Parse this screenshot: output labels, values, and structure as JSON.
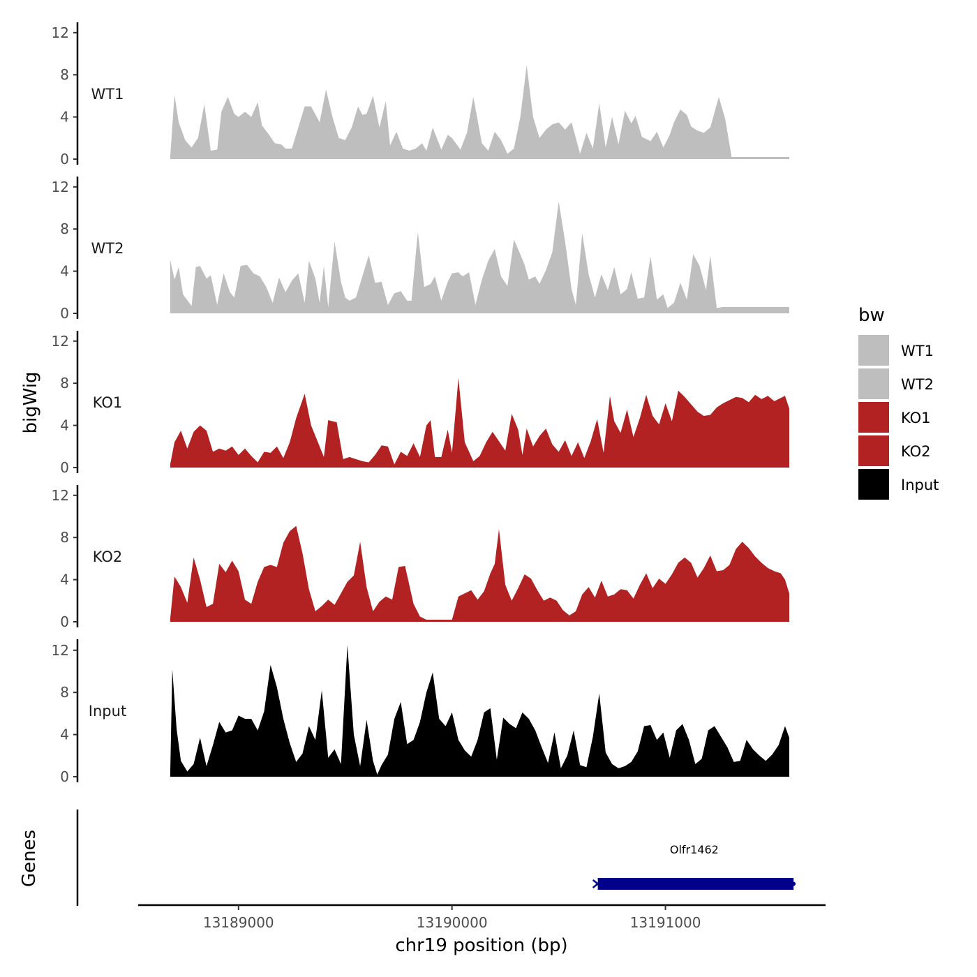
{
  "chart_data": {
    "type": "area",
    "ylabel": "bigWig",
    "genes_label": "Genes",
    "xlabel": "chr19 position (bp)",
    "x_ticks": [
      13189000,
      13190000,
      13191000
    ],
    "x_tick_labels": [
      "13189000",
      "13190000",
      "13191000"
    ],
    "xlim": [
      13188530,
      13191750
    ],
    "ylim": [
      0,
      12.6
    ],
    "y_ticks": [
      0,
      4,
      8,
      12
    ],
    "y_tick_labels": [
      "0",
      "4",
      "8",
      "12"
    ],
    "legend": {
      "title": "bw",
      "entries": [
        {
          "label": "WT1",
          "color": "#bebebe"
        },
        {
          "label": "WT2",
          "color": "#bebebe"
        },
        {
          "label": "KO1",
          "color": "#b22222"
        },
        {
          "label": "KO2",
          "color": "#b22222"
        },
        {
          "label": "Input",
          "color": "#000000"
        }
      ]
    },
    "series": [
      {
        "name": "WT1",
        "color": "#bebebe",
        "x": [
          13188680,
          13188700,
          13188720,
          13188750,
          13188780,
          13188810,
          13188840,
          13188870,
          13188900,
          13188920,
          13188950,
          13188980,
          13189000,
          13189030,
          13189060,
          13189090,
          13189110,
          13189140,
          13189170,
          13189200,
          13189220,
          13189250,
          13189280,
          13189310,
          13189340,
          13189380,
          13189410,
          13189440,
          13189470,
          13189500,
          13189530,
          13189560,
          13189580,
          13189600,
          13189630,
          13189660,
          13189690,
          13189710,
          13189740,
          13189770,
          13189800,
          13189830,
          13189860,
          13189880,
          13189910,
          13189950,
          13189980,
          13190000,
          13190040,
          13190070,
          13190100,
          13190140,
          13190170,
          13190200,
          13190230,
          13190260,
          13190290,
          13190320,
          13190350,
          13190380,
          13190410,
          13190440,
          13190470,
          13190500,
          13190530,
          13190560,
          13190600,
          13190630,
          13190660,
          13190690,
          13190720,
          13190750,
          13190780,
          13190810,
          13190840,
          13190860,
          13190890,
          13190930,
          13190960,
          13190990,
          13191020,
          13191040,
          13191070,
          13191100,
          13191120,
          13191150,
          13191180,
          13191210,
          13191250,
          13191280,
          13191310,
          13191340,
          13191370,
          13191400,
          13191430,
          13191460,
          13191490,
          13191520,
          13191540,
          13191570,
          13191580
        ],
        "y": [
          0.2,
          6.1,
          3.5,
          1.8,
          1.1,
          2.0,
          5.2,
          0.8,
          0.9,
          4.5,
          5.9,
          4.3,
          4.0,
          4.5,
          4.0,
          5.4,
          3.2,
          2.4,
          1.5,
          1.4,
          1.0,
          1.0,
          3.0,
          5.0,
          5.0,
          3.5,
          6.6,
          4.0,
          2.0,
          1.8,
          3.0,
          5.0,
          4.2,
          4.3,
          6.0,
          3.0,
          5.5,
          1.3,
          2.6,
          1.0,
          0.8,
          1.0,
          1.5,
          0.8,
          3.0,
          0.9,
          2.3,
          2.0,
          0.9,
          2.5,
          5.9,
          1.5,
          0.8,
          2.6,
          1.8,
          0.5,
          1.0,
          4.0,
          8.9,
          4.0,
          2.0,
          2.8,
          3.3,
          3.5,
          2.8,
          3.5,
          0.5,
          2.5,
          1.0,
          5.3,
          1.1,
          4.0,
          1.4,
          4.6,
          3.4,
          4.1,
          2.1,
          1.7,
          2.6,
          1.1,
          2.3,
          3.5,
          4.7,
          4.2,
          3.1,
          2.7,
          2.5,
          3.0,
          5.9,
          3.8,
          0.2,
          0.2,
          0.2,
          0.2,
          0.2,
          0.2,
          0.2,
          0.2,
          0.2,
          0.2,
          0.2
        ]
      },
      {
        "name": "WT2",
        "color": "#bebebe",
        "x": [
          13188680,
          13188700,
          13188720,
          13188740,
          13188780,
          13188800,
          13188820,
          13188850,
          13188870,
          13188900,
          13188930,
          13188960,
          13188980,
          13189010,
          13189040,
          13189070,
          13189100,
          13189130,
          13189160,
          13189190,
          13189220,
          13189250,
          13189280,
          13189310,
          13189330,
          13189360,
          13189380,
          13189400,
          13189420,
          13189450,
          13189480,
          13189500,
          13189520,
          13189550,
          13189580,
          13189610,
          13189640,
          13189670,
          13189700,
          13189730,
          13189760,
          13189790,
          13189810,
          13189840,
          13189870,
          13189900,
          13189920,
          13189950,
          13189980,
          13190000,
          13190030,
          13190050,
          13190080,
          13190110,
          13190140,
          13190170,
          13190200,
          13190230,
          13190260,
          13190290,
          13190320,
          13190340,
          13190360,
          13190390,
          13190410,
          13190440,
          13190470,
          13190500,
          13190530,
          13190560,
          13190580,
          13190610,
          13190640,
          13190670,
          13190700,
          13190730,
          13190760,
          13190790,
          13190820,
          13190840,
          13190870,
          13190900,
          13190930,
          13190960,
          13190990,
          13191010,
          13191040,
          13191070,
          13191100,
          13191130,
          13191160,
          13191190,
          13191210,
          13191240,
          13191270,
          13191300,
          13191330,
          13191360,
          13191390,
          13191420,
          13191450,
          13191480,
          13191510,
          13191540,
          13191560,
          13191580
        ],
        "y": [
          5.1,
          3.2,
          4.4,
          1.8,
          0.7,
          4.4,
          4.5,
          3.3,
          3.6,
          0.8,
          3.8,
          2.0,
          1.5,
          4.5,
          4.6,
          3.8,
          3.5,
          2.5,
          1.0,
          3.4,
          2.0,
          3.1,
          3.8,
          1.0,
          5.0,
          3.3,
          1.0,
          4.5,
          0.6,
          6.8,
          3.0,
          1.5,
          1.2,
          1.5,
          3.5,
          5.5,
          2.9,
          3.0,
          0.8,
          1.9,
          2.1,
          1.2,
          1.2,
          7.7,
          2.5,
          2.8,
          3.5,
          1.2,
          3.0,
          3.8,
          3.9,
          3.5,
          3.9,
          0.8,
          3.2,
          5.0,
          6.1,
          3.5,
          2.6,
          7.0,
          5.6,
          4.6,
          3.2,
          3.5,
          2.8,
          4.1,
          5.8,
          10.6,
          6.8,
          2.3,
          0.8,
          7.6,
          3.7,
          1.5,
          3.7,
          2.2,
          4.4,
          1.8,
          2.3,
          3.9,
          1.4,
          1.5,
          5.4,
          1.3,
          1.8,
          0.5,
          1.0,
          2.9,
          1.3,
          5.6,
          4.5,
          2.2,
          5.5,
          0.5,
          0.6,
          0.6,
          0.6,
          0.6,
          0.6,
          0.6,
          0.6,
          0.6,
          0.6,
          0.6,
          0.6,
          0.6
        ]
      },
      {
        "name": "KO1",
        "color": "#b22222",
        "x": [
          13188680,
          13188700,
          13188730,
          13188760,
          13188790,
          13188820,
          13188850,
          13188880,
          13188910,
          13188940,
          13188970,
          13189000,
          13189030,
          13189060,
          13189090,
          13189120,
          13189150,
          13189180,
          13189210,
          13189240,
          13189270,
          13189310,
          13189340,
          13189370,
          13189400,
          13189420,
          13189460,
          13189490,
          13189520,
          13189550,
          13189580,
          13189610,
          13189640,
          13189670,
          13189700,
          13189730,
          13189760,
          13189790,
          13189820,
          13189850,
          13189880,
          13189900,
          13189920,
          13189950,
          13189980,
          13190000,
          13190030,
          13190060,
          13190100,
          13190130,
          13190160,
          13190190,
          13190220,
          13190250,
          13190280,
          13190310,
          13190330,
          13190350,
          13190380,
          13190410,
          13190440,
          13190470,
          13190500,
          13190530,
          13190560,
          13190590,
          13190620,
          13190650,
          13190680,
          13190710,
          13190740,
          13190760,
          13190790,
          13190820,
          13190850,
          13190880,
          13190910,
          13190940,
          13190970,
          13191000,
          13191030,
          13191060,
          13191090,
          13191120,
          13191150,
          13191180,
          13191210,
          13191240,
          13191270,
          13191300,
          13191330,
          13191360,
          13191390,
          13191420,
          13191450,
          13191480,
          13191510,
          13191540,
          13191560,
          13191580
        ],
        "y": [
          0.3,
          2.4,
          3.5,
          1.8,
          3.4,
          4.0,
          3.5,
          1.5,
          1.8,
          1.6,
          2.0,
          1.2,
          1.8,
          1.1,
          0.5,
          1.5,
          1.4,
          2.0,
          0.9,
          2.4,
          4.7,
          7.0,
          4.0,
          2.5,
          1.0,
          4.5,
          4.3,
          0.8,
          1.0,
          0.8,
          0.6,
          0.5,
          1.2,
          2.1,
          2.0,
          0.3,
          1.5,
          1.1,
          2.3,
          1.0,
          4.0,
          4.5,
          1.0,
          1.0,
          3.6,
          1.4,
          8.5,
          2.4,
          0.6,
          1.1,
          2.4,
          3.4,
          2.5,
          1.6,
          5.1,
          3.6,
          1.2,
          3.7,
          2.0,
          3.0,
          3.7,
          2.2,
          1.5,
          2.6,
          1.1,
          2.4,
          0.9,
          2.5,
          4.6,
          1.4,
          6.8,
          4.4,
          3.3,
          5.5,
          2.9,
          4.7,
          6.9,
          4.9,
          4.1,
          6.1,
          4.4,
          7.3,
          6.7,
          6.0,
          5.3,
          4.9,
          5.0,
          5.7,
          6.1,
          6.4,
          6.7,
          6.6,
          6.2,
          6.9,
          6.5,
          6.8,
          6.3,
          6.6,
          6.8,
          5.6
        ]
      },
      {
        "name": "KO2",
        "color": "#b22222",
        "x": [
          13188680,
          13188700,
          13188730,
          13188760,
          13188790,
          13188820,
          13188850,
          13188880,
          13188910,
          13188940,
          13188970,
          13189000,
          13189030,
          13189060,
          13189090,
          13189120,
          13189150,
          13189180,
          13189210,
          13189240,
          13189270,
          13189300,
          13189330,
          13189360,
          13189390,
          13189420,
          13189450,
          13189480,
          13189510,
          13189540,
          13189570,
          13189600,
          13189630,
          13189660,
          13189690,
          13189720,
          13189750,
          13189780,
          13189820,
          13189850,
          13189880,
          13189910,
          13189940,
          13189970,
          13190000,
          13190030,
          13190060,
          13190090,
          13190120,
          13190150,
          13190180,
          13190200,
          13190220,
          13190250,
          13190280,
          13190310,
          13190340,
          13190370,
          13190400,
          13190430,
          13190460,
          13190490,
          13190520,
          13190550,
          13190580,
          13190610,
          13190640,
          13190670,
          13190700,
          13190730,
          13190760,
          13190790,
          13190820,
          13190850,
          13190880,
          13190910,
          13190940,
          13190970,
          13191000,
          13191030,
          13191060,
          13191090,
          13191120,
          13191150,
          13191180,
          13191210,
          13191240,
          13191270,
          13191300,
          13191330,
          13191360,
          13191390,
          13191420,
          13191450,
          13191480,
          13191510,
          13191540,
          13191560,
          13191580
        ],
        "y": [
          0.3,
          4.3,
          3.3,
          1.8,
          6.1,
          4.0,
          1.4,
          1.7,
          5.5,
          4.7,
          5.8,
          4.8,
          2.1,
          1.7,
          3.8,
          5.2,
          5.4,
          5.2,
          7.5,
          8.6,
          9.1,
          6.5,
          3.1,
          1.0,
          1.5,
          2.1,
          1.6,
          2.7,
          3.8,
          4.4,
          7.6,
          3.3,
          1.0,
          1.9,
          2.4,
          2.1,
          5.2,
          5.3,
          1.7,
          0.5,
          0.2,
          0.2,
          0.2,
          0.2,
          0.2,
          2.4,
          2.7,
          3.0,
          2.1,
          2.9,
          4.6,
          5.5,
          8.8,
          3.5,
          2.0,
          3.2,
          4.5,
          4.1,
          3.0,
          2.0,
          2.3,
          2.0,
          1.1,
          0.6,
          1.0,
          2.6,
          3.3,
          2.3,
          3.9,
          2.4,
          2.6,
          3.1,
          3.0,
          2.2,
          3.5,
          4.6,
          3.2,
          4.1,
          3.6,
          4.5,
          5.6,
          6.1,
          5.6,
          4.2,
          5.1,
          6.3,
          4.8,
          4.9,
          5.4,
          6.9,
          7.6,
          7.0,
          6.2,
          5.6,
          5.1,
          4.8,
          4.6,
          4.0,
          2.7
        ]
      },
      {
        "name": "Input",
        "color": "#000000",
        "x": [
          13188680,
          13188690,
          13188710,
          13188730,
          13188760,
          13188790,
          13188820,
          13188850,
          13188880,
          13188910,
          13188940,
          13188970,
          13189000,
          13189030,
          13189060,
          13189090,
          13189120,
          13189150,
          13189180,
          13189210,
          13189240,
          13189270,
          13189300,
          13189330,
          13189360,
          13189390,
          13189420,
          13189450,
          13189480,
          13189510,
          13189540,
          13189570,
          13189600,
          13189630,
          13189650,
          13189670,
          13189700,
          13189730,
          13189760,
          13189790,
          13189820,
          13189850,
          13189880,
          13189910,
          13189940,
          13189970,
          13190000,
          13190030,
          13190060,
          13190090,
          13190120,
          13190150,
          13190180,
          13190210,
          13190240,
          13190270,
          13190300,
          13190330,
          13190360,
          13190390,
          13190420,
          13190450,
          13190480,
          13190510,
          13190540,
          13190570,
          13190600,
          13190630,
          13190660,
          13190690,
          13190720,
          13190750,
          13190780,
          13190810,
          13190840,
          13190870,
          13190900,
          13190930,
          13190960,
          13190990,
          13191020,
          13191050,
          13191080,
          13191110,
          13191140,
          13191170,
          13191200,
          13191230,
          13191260,
          13191290,
          13191320,
          13191350,
          13191380,
          13191410,
          13191440,
          13191470,
          13191500,
          13191530,
          13191560,
          13191580
        ],
        "y": [
          0.2,
          10.2,
          4.5,
          1.5,
          0.5,
          1.2,
          3.7,
          1.0,
          3.0,
          5.2,
          4.2,
          4.4,
          5.8,
          5.5,
          5.5,
          4.4,
          6.2,
          10.6,
          8.5,
          5.5,
          3.2,
          1.4,
          2.2,
          4.8,
          3.5,
          8.2,
          1.8,
          2.6,
          1.2,
          12.5,
          4.0,
          1.0,
          5.4,
          1.5,
          0.2,
          1.1,
          2.1,
          5.5,
          7.1,
          3.1,
          3.5,
          5.2,
          8.0,
          9.9,
          5.5,
          4.8,
          6.1,
          3.5,
          2.5,
          1.9,
          3.5,
          6.1,
          6.5,
          1.6,
          5.6,
          5.0,
          4.6,
          6.1,
          5.5,
          4.4,
          2.8,
          1.3,
          4.2,
          0.8,
          2.0,
          4.4,
          1.1,
          0.9,
          3.8,
          7.9,
          2.3,
          1.2,
          0.8,
          1.0,
          1.4,
          2.4,
          4.8,
          4.9,
          3.5,
          4.2,
          1.8,
          4.4,
          5.0,
          3.5,
          1.2,
          1.7,
          4.4,
          4.8,
          3.8,
          2.8,
          1.4,
          1.5,
          3.5,
          2.6,
          2.0,
          1.5,
          2.1,
          3.0,
          4.8,
          3.7
        ]
      }
    ],
    "genes": [
      {
        "name": "Olfr1462",
        "start": 13190670,
        "end": 13191600,
        "strand": "-",
        "color": "#00008b"
      }
    ]
  }
}
